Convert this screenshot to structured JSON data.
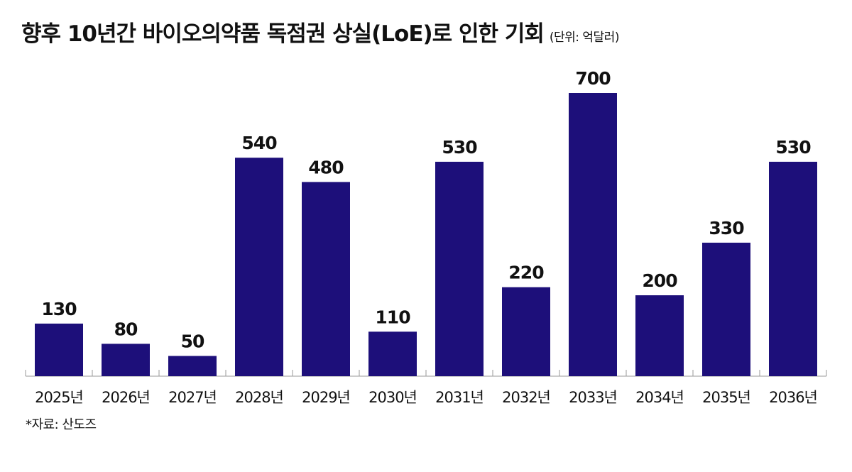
{
  "title": "향후 10년간 바이오의약품 독점권 상실(LoE)로 인한 기회",
  "unit": "(단위: 억달러)",
  "source": "*자료: 산도즈",
  "chart_data": {
    "type": "bar",
    "categories": [
      "2025년",
      "2026년",
      "2027년",
      "2028년",
      "2029년",
      "2030년",
      "2031년",
      "2032년",
      "2033년",
      "2034년",
      "2035년",
      "2036년"
    ],
    "values": [
      130,
      80,
      50,
      540,
      480,
      110,
      530,
      220,
      700,
      200,
      330,
      530
    ],
    "data_labels": [
      "130",
      "80",
      "50",
      "540",
      "480",
      "110",
      "530",
      "220",
      "700",
      "200",
      "330",
      "530"
    ],
    "bar_color": "#1d0f7a",
    "ylim": [
      0,
      700
    ],
    "grid": false,
    "legend": "none"
  }
}
